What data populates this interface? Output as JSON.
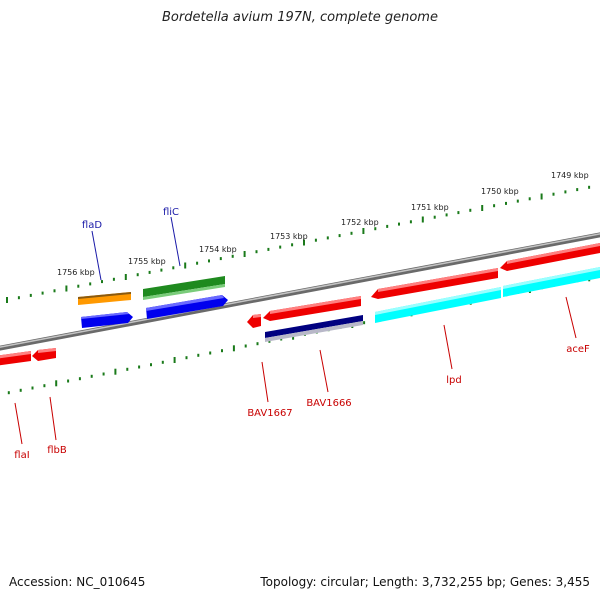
{
  "title": "Bordetella avium 197N, complete genome",
  "footer": {
    "accession": "Accession: NC_010645",
    "summary": "Topology: circular; Length: 3,732,255 bp; Genes: 3,455"
  },
  "colors": {
    "backbone": "#7a7a7a",
    "tick": "#1a7a1a",
    "label_top": "#1a1aa8",
    "label_bottom": "#c80000"
  },
  "ticks": [
    {
      "label": "1749 kbp"
    },
    {
      "label": "1750 kbp"
    },
    {
      "label": "1751 kbp"
    },
    {
      "label": "1752 kbp"
    },
    {
      "label": "1753 kbp"
    },
    {
      "label": "1754 kbp"
    },
    {
      "label": "1755 kbp"
    },
    {
      "label": "1756 kbp"
    }
  ],
  "genes_top": [
    {
      "name": "flaD",
      "color": "#1a1aa8"
    },
    {
      "name": "fliC",
      "color": "#1a1aa8"
    }
  ],
  "genes_bottom": [
    {
      "name": "flaI",
      "color": "#c80000"
    },
    {
      "name": "flbB",
      "color": "#c80000"
    },
    {
      "name": "BAV1667",
      "color": "#c80000"
    },
    {
      "name": "BAV1666",
      "color": "#c80000"
    },
    {
      "name": "lpd",
      "color": "#c80000"
    },
    {
      "name": "aceF",
      "color": "#c80000"
    }
  ],
  "features": [
    {
      "id": "flaD-orange",
      "color": "#ff9900",
      "strand": "+"
    },
    {
      "id": "flaD-blue",
      "color": "#0000ee",
      "strand": "+"
    },
    {
      "id": "fliC-green",
      "color": "#1f8a1f",
      "strand": "+"
    },
    {
      "id": "fliC-blue",
      "color": "#0000ee",
      "strand": "+"
    },
    {
      "id": "flaI-red",
      "color": "#ee0000",
      "strand": "-"
    },
    {
      "id": "flbB-red",
      "color": "#ee0000",
      "strand": "-"
    },
    {
      "id": "BAV1667-red",
      "color": "#ee0000",
      "strand": "-"
    },
    {
      "id": "BAV1666-red",
      "color": "#ee0000",
      "strand": "-"
    },
    {
      "id": "BAV1666-navy",
      "color": "#000080",
      "strand": "-"
    },
    {
      "id": "lpd-red",
      "color": "#ee0000",
      "strand": "-"
    },
    {
      "id": "lpd-cyan",
      "color": "#00ffff",
      "strand": "-"
    },
    {
      "id": "aceF-red",
      "color": "#ee0000",
      "strand": "-"
    },
    {
      "id": "aceF-cyan",
      "color": "#00ffff",
      "strand": "-"
    }
  ]
}
